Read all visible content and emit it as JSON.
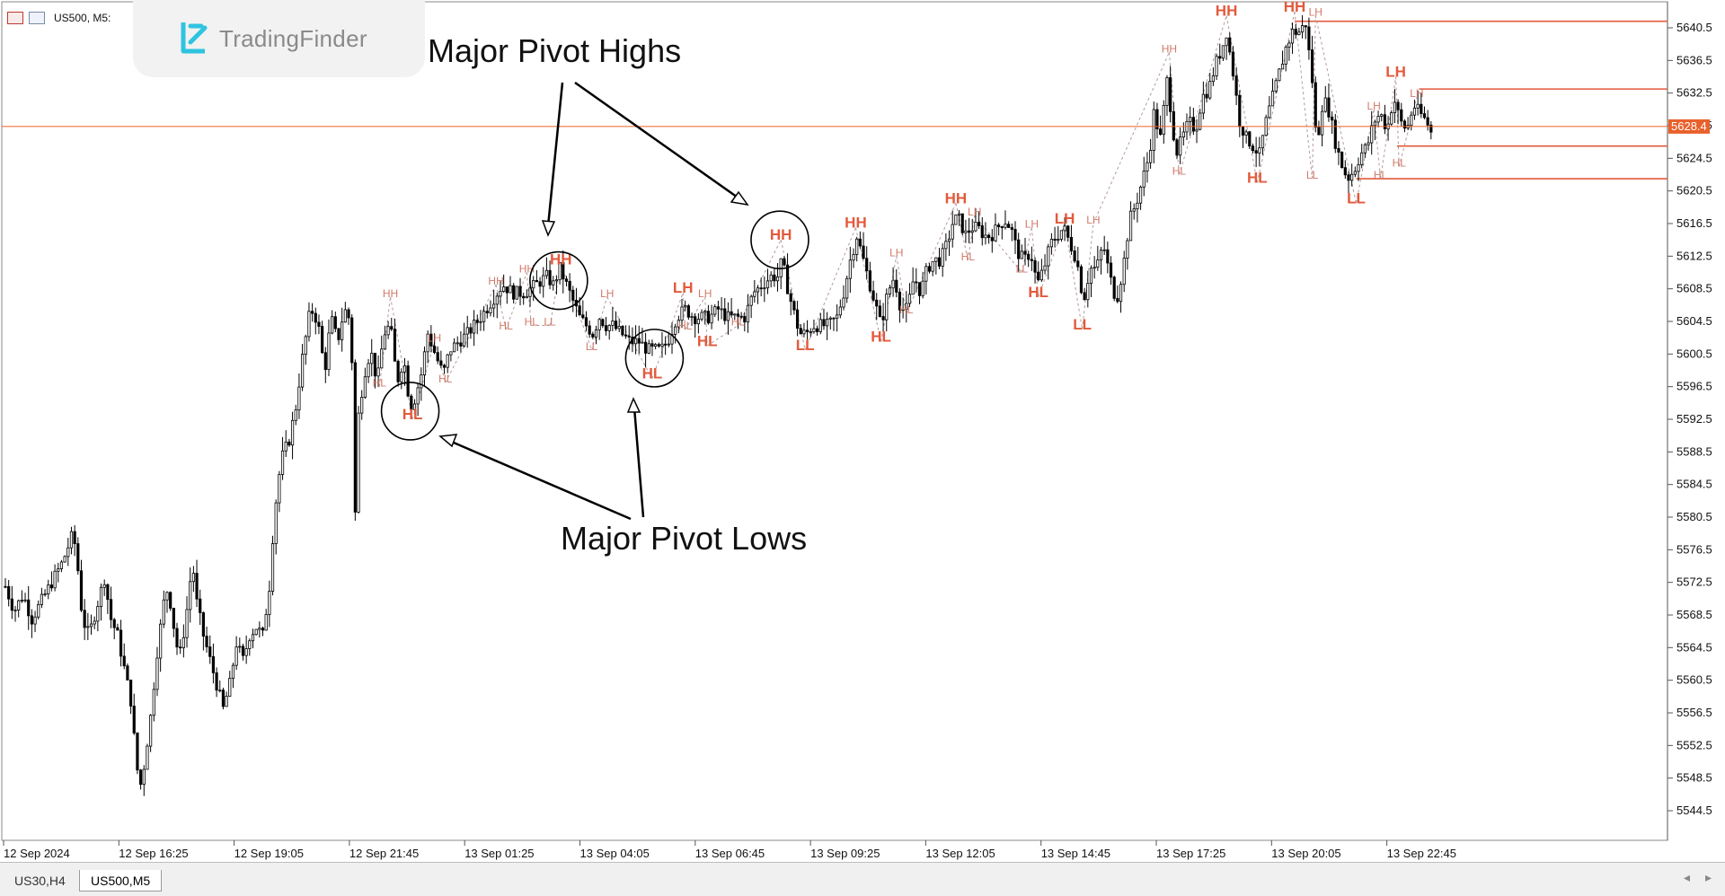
{
  "window": {
    "symbol_label": "US500, M5:",
    "brand": "TradingFinder"
  },
  "tabs": [
    {
      "label": "US30,H4",
      "active": false
    },
    {
      "label": "US500,M5",
      "active": true
    }
  ],
  "annotations": {
    "highs_label": "Major Pivot Highs",
    "lows_label": "Major Pivot Lows"
  },
  "colors": {
    "candle": "#000000",
    "bid_line": "#e8612c",
    "level_line": "#e35a3c",
    "pivot_small": "#d27a6a",
    "pivot_major": "#e35a3c",
    "zigzag": "#b59a9a"
  },
  "chart_data": {
    "type": "candlestick",
    "symbol": "US500",
    "timeframe": "M5",
    "ylim": [
      5542,
      5643
    ],
    "y_ticks": [
      "5640.5",
      "5636.5",
      "5632.5",
      "5628.5",
      "5624.5",
      "5620.5",
      "5616.5",
      "5612.5",
      "5608.5",
      "5604.5",
      "5600.5",
      "5596.5",
      "5592.5",
      "5588.5",
      "5584.5",
      "5580.5",
      "5576.5",
      "5572.5",
      "5568.5",
      "5564.5",
      "5560.5",
      "5556.5",
      "5552.5",
      "5548.5",
      "5544.5"
    ],
    "x_ticks": [
      "12 Sep 2024",
      "12 Sep 16:25",
      "12 Sep 19:05",
      "12 Sep 21:45",
      "13 Sep 01:25",
      "13 Sep 04:05",
      "13 Sep 06:45",
      "13 Sep 09:25",
      "13 Sep 12:05",
      "13 Sep 14:45",
      "13 Sep 17:25",
      "13 Sep 20:05",
      "13 Sep 22:45"
    ],
    "current_price": "5628.4",
    "price_path": [
      [
        0,
        5572
      ],
      [
        8,
        5569
      ],
      [
        16,
        5571
      ],
      [
        24,
        5568
      ],
      [
        40,
        5572
      ],
      [
        52,
        5575
      ],
      [
        60,
        5578
      ],
      [
        64,
        5577
      ],
      [
        70,
        5568
      ],
      [
        76,
        5566
      ],
      [
        84,
        5570
      ],
      [
        90,
        5573
      ],
      [
        96,
        5568
      ],
      [
        102,
        5566
      ],
      [
        108,
        5562
      ],
      [
        114,
        5558
      ],
      [
        118,
        5552
      ],
      [
        122,
        5547
      ],
      [
        126,
        5550
      ],
      [
        132,
        5556
      ],
      [
        138,
        5564
      ],
      [
        144,
        5570
      ],
      [
        148,
        5572
      ],
      [
        152,
        5568
      ],
      [
        158,
        5563
      ],
      [
        164,
        5568
      ],
      [
        170,
        5575
      ],
      [
        174,
        5570
      ],
      [
        180,
        5566
      ],
      [
        186,
        5563
      ],
      [
        192,
        5560
      ],
      [
        198,
        5557
      ],
      [
        204,
        5560
      ],
      [
        210,
        5565
      ],
      [
        216,
        5563
      ],
      [
        222,
        5566
      ],
      [
        228,
        5567
      ],
      [
        234,
        5566
      ],
      [
        240,
        5572
      ],
      [
        244,
        5580
      ],
      [
        248,
        5585
      ],
      [
        252,
        5588
      ],
      [
        258,
        5590
      ],
      [
        264,
        5594
      ],
      [
        270,
        5600
      ],
      [
        276,
        5605
      ],
      [
        280,
        5606
      ],
      [
        286,
        5603
      ],
      [
        290,
        5598
      ],
      [
        296,
        5605
      ],
      [
        302,
        5602
      ],
      [
        308,
        5606
      ],
      [
        312,
        5605
      ],
      [
        316,
        5598
      ],
      [
        318,
        5581
      ],
      [
        320,
        5592
      ],
      [
        326,
        5598
      ],
      [
        332,
        5601
      ],
      [
        338,
        5597
      ],
      [
        344,
        5603
      ],
      [
        350,
        5604
      ],
      [
        356,
        5597
      ],
      [
        362,
        5600
      ],
      [
        368,
        5594
      ],
      [
        372,
        5595
      ],
      [
        378,
        5598
      ],
      [
        384,
        5603
      ],
      [
        392,
        5600
      ],
      [
        398,
        5598
      ],
      [
        404,
        5601
      ],
      [
        412,
        5602
      ],
      [
        420,
        5603
      ],
      [
        432,
        5605
      ],
      [
        442,
        5607
      ],
      [
        452,
        5609
      ],
      [
        462,
        5608
      ],
      [
        472,
        5608
      ],
      [
        482,
        5609
      ],
      [
        492,
        5610
      ],
      [
        498,
        5609
      ],
      [
        504,
        5611
      ],
      [
        510,
        5609
      ],
      [
        516,
        5607
      ],
      [
        522,
        5605
      ],
      [
        528,
        5604
      ],
      [
        534,
        5603
      ],
      [
        540,
        5605
      ],
      [
        546,
        5604
      ],
      [
        552,
        5604
      ],
      [
        560,
        5603
      ],
      [
        568,
        5602
      ],
      [
        576,
        5602
      ],
      [
        584,
        5601
      ],
      [
        590,
        5601
      ],
      [
        596,
        5601
      ],
      [
        602,
        5602
      ],
      [
        610,
        5605
      ],
      [
        618,
        5606
      ],
      [
        626,
        5605
      ],
      [
        632,
        5605
      ],
      [
        640,
        5605
      ],
      [
        648,
        5606
      ],
      [
        656,
        5605
      ],
      [
        664,
        5605
      ],
      [
        672,
        5605
      ],
      [
        680,
        5608
      ],
      [
        688,
        5609
      ],
      [
        696,
        5610
      ],
      [
        702,
        5610
      ],
      [
        706,
        5612
      ],
      [
        712,
        5608
      ],
      [
        716,
        5606
      ],
      [
        722,
        5603
      ],
      [
        728,
        5603
      ],
      [
        734,
        5604
      ],
      [
        740,
        5604
      ],
      [
        748,
        5604
      ],
      [
        756,
        5605
      ],
      [
        762,
        5608
      ],
      [
        768,
        5612
      ],
      [
        774,
        5615
      ],
      [
        778,
        5613
      ],
      [
        784,
        5610
      ],
      [
        790,
        5607
      ],
      [
        796,
        5604
      ],
      [
        802,
        5608
      ],
      [
        808,
        5610
      ],
      [
        814,
        5606
      ],
      [
        820,
        5606
      ],
      [
        826,
        5610
      ],
      [
        832,
        5608
      ],
      [
        838,
        5611
      ],
      [
        844,
        5612
      ],
      [
        850,
        5612
      ],
      [
        856,
        5614
      ],
      [
        862,
        5617
      ],
      [
        868,
        5617
      ],
      [
        872,
        5615
      ],
      [
        878,
        5616
      ],
      [
        884,
        5616
      ],
      [
        890,
        5615
      ],
      [
        896,
        5615
      ],
      [
        902,
        5616
      ],
      [
        908,
        5617
      ],
      [
        914,
        5616
      ],
      [
        920,
        5613
      ],
      [
        926,
        5612
      ],
      [
        932,
        5613
      ],
      [
        938,
        5609
      ],
      [
        944,
        5611
      ],
      [
        950,
        5614
      ],
      [
        956,
        5615
      ],
      [
        962,
        5616
      ],
      [
        968,
        5614
      ],
      [
        974,
        5612
      ],
      [
        980,
        5607
      ],
      [
        986,
        5611
      ],
      [
        992,
        5611
      ],
      [
        998,
        5614
      ],
      [
        1004,
        5610
      ],
      [
        1010,
        5607
      ],
      [
        1016,
        5611
      ],
      [
        1022,
        5617
      ],
      [
        1028,
        5619
      ],
      [
        1034,
        5622
      ],
      [
        1040,
        5625
      ],
      [
        1044,
        5630
      ],
      [
        1050,
        5627
      ],
      [
        1056,
        5634
      ],
      [
        1060,
        5630
      ],
      [
        1064,
        5625
      ],
      [
        1070,
        5627
      ],
      [
        1076,
        5629
      ],
      [
        1082,
        5628
      ],
      [
        1088,
        5632
      ],
      [
        1094,
        5633
      ],
      [
        1100,
        5636
      ],
      [
        1106,
        5638
      ],
      [
        1110,
        5640
      ],
      [
        1116,
        5635
      ],
      [
        1122,
        5629
      ],
      [
        1128,
        5627
      ],
      [
        1134,
        5626
      ],
      [
        1140,
        5625
      ],
      [
        1146,
        5629
      ],
      [
        1152,
        5632
      ],
      [
        1158,
        5635
      ],
      [
        1164,
        5638
      ],
      [
        1170,
        5640
      ],
      [
        1176,
        5640
      ],
      [
        1182,
        5641
      ],
      [
        1188,
        5634
      ],
      [
        1192,
        5626
      ],
      [
        1198,
        5632
      ],
      [
        1204,
        5630
      ],
      [
        1208,
        5627
      ],
      [
        1214,
        5624
      ],
      [
        1220,
        5622
      ],
      [
        1226,
        5623
      ],
      [
        1232,
        5625
      ],
      [
        1238,
        5626
      ],
      [
        1244,
        5629
      ],
      [
        1250,
        5630
      ],
      [
        1256,
        5628
      ],
      [
        1262,
        5632
      ],
      [
        1268,
        5629
      ],
      [
        1274,
        5628
      ],
      [
        1280,
        5631
      ],
      [
        1286,
        5630
      ],
      [
        1292,
        5629
      ],
      [
        1298,
        5627
      ]
    ],
    "pivots": [
      {
        "label": "HH",
        "x": 350,
        "y": 5607.5,
        "major": false
      },
      {
        "label": "HL",
        "x": 340,
        "y": 5596.5,
        "major": false
      },
      {
        "label": "HL",
        "x": 370,
        "y": 5592.5,
        "major": true
      },
      {
        "label": "LH",
        "x": 390,
        "y": 5602.0,
        "major": false
      },
      {
        "label": "HL",
        "x": 400,
        "y": 5597.0,
        "major": false
      },
      {
        "label": "HH",
        "x": 446,
        "y": 5609.0,
        "major": false
      },
      {
        "label": "HL",
        "x": 455,
        "y": 5603.5,
        "major": false
      },
      {
        "label": "HH",
        "x": 474,
        "y": 5610.5,
        "major": false
      },
      {
        "label": "HL",
        "x": 478,
        "y": 5604.0,
        "major": false
      },
      {
        "label": "LL",
        "x": 495,
        "y": 5604.0,
        "major": false
      },
      {
        "label": "HH",
        "x": 505,
        "y": 5611.5,
        "major": true
      },
      {
        "label": "LH",
        "x": 547,
        "y": 5607.5,
        "major": false
      },
      {
        "label": "LL",
        "x": 533,
        "y": 5601.0,
        "major": false
      },
      {
        "label": "HL",
        "x": 588,
        "y": 5597.5,
        "major": true
      },
      {
        "label": "LH",
        "x": 616,
        "y": 5608.0,
        "major": true
      },
      {
        "label": "HL",
        "x": 618,
        "y": 5603.5,
        "major": false
      },
      {
        "label": "LH",
        "x": 636,
        "y": 5607.5,
        "major": false
      },
      {
        "label": "HL",
        "x": 638,
        "y": 5601.5,
        "major": true
      },
      {
        "label": "HL",
        "x": 666,
        "y": 5604.0,
        "major": false
      },
      {
        "label": "HH",
        "x": 705,
        "y": 5614.5,
        "major": true
      },
      {
        "label": "LL",
        "x": 727,
        "y": 5601.0,
        "major": true
      },
      {
        "label": "HH",
        "x": 773,
        "y": 5616.0,
        "major": true
      },
      {
        "label": "HL",
        "x": 796,
        "y": 5602.0,
        "major": true
      },
      {
        "label": "LH",
        "x": 810,
        "y": 5612.5,
        "major": false
      },
      {
        "label": "HL",
        "x": 819,
        "y": 5605.5,
        "major": false
      },
      {
        "label": "HH",
        "x": 864,
        "y": 5619.0,
        "major": true
      },
      {
        "label": "LH",
        "x": 881,
        "y": 5617.5,
        "major": false
      },
      {
        "label": "HL",
        "x": 875,
        "y": 5612.0,
        "major": false
      },
      {
        "label": "LH",
        "x": 933,
        "y": 5616.0,
        "major": false
      },
      {
        "label": "LL",
        "x": 924,
        "y": 5610.5,
        "major": false
      },
      {
        "label": "HL",
        "x": 939,
        "y": 5607.5,
        "major": true
      },
      {
        "label": "LH",
        "x": 963,
        "y": 5616.5,
        "major": true
      },
      {
        "label": "LH",
        "x": 989,
        "y": 5616.5,
        "major": false
      },
      {
        "label": "LL",
        "x": 979,
        "y": 5603.5,
        "major": true
      },
      {
        "label": "HH",
        "x": 1058,
        "y": 5637.5,
        "major": false
      },
      {
        "label": "HL",
        "x": 1067,
        "y": 5622.5,
        "major": false
      },
      {
        "label": "HH",
        "x": 1110,
        "y": 5642.0,
        "major": true
      },
      {
        "label": "HL",
        "x": 1138,
        "y": 5621.5,
        "major": true
      },
      {
        "label": "HH",
        "x": 1172,
        "y": 5642.5,
        "major": true
      },
      {
        "label": "LH",
        "x": 1191,
        "y": 5642.0,
        "major": false
      },
      {
        "label": "LL",
        "x": 1188,
        "y": 5622.0,
        "major": false
      },
      {
        "label": "LL",
        "x": 1228,
        "y": 5619.0,
        "major": true
      },
      {
        "label": "LH",
        "x": 1244,
        "y": 5630.5,
        "major": false
      },
      {
        "label": "HL",
        "x": 1250,
        "y": 5622.0,
        "major": false
      },
      {
        "label": "LH",
        "x": 1264,
        "y": 5634.5,
        "major": true
      },
      {
        "label": "LH",
        "x": 1283,
        "y": 5632.0,
        "major": false
      },
      {
        "label": "HL",
        "x": 1267,
        "y": 5623.5,
        "major": false
      }
    ],
    "levels": [
      {
        "price": 5641.3,
        "from": 1172
      },
      {
        "price": 5633.0,
        "from": 1285
      },
      {
        "price": 5626.0,
        "from": 1265
      },
      {
        "price": 5622.0,
        "from": 1228
      }
    ],
    "circles": [
      {
        "x": 368,
        "y": 5593.5
      },
      {
        "x": 503,
        "y": 5609.5
      },
      {
        "x": 590,
        "y": 5600.0
      },
      {
        "x": 704,
        "y": 5614.5
      }
    ]
  }
}
